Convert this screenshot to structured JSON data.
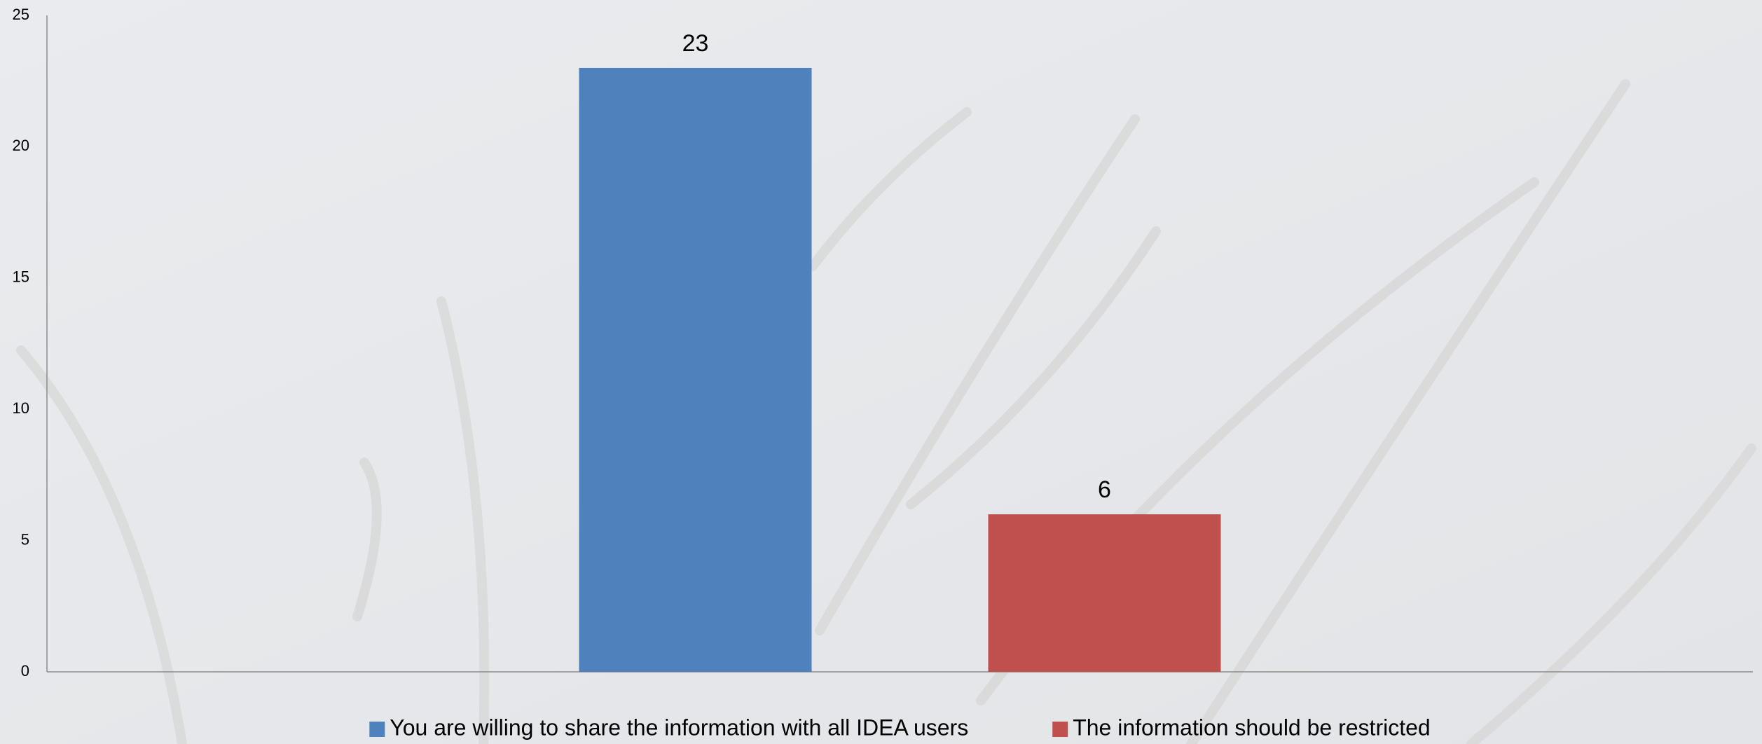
{
  "chart_data": {
    "type": "bar",
    "categories": [
      null
    ],
    "series": [
      {
        "name": "You are willing to share the information with all IDEA users",
        "color": "#4f81bd",
        "values": [
          23
        ]
      },
      {
        "name": "The information should be restricted",
        "color": "#c0504d",
        "values": [
          6
        ]
      }
    ],
    "ylim": [
      0,
      25
    ],
    "yticks": [
      0,
      5,
      10,
      15,
      20,
      25
    ],
    "grid": false,
    "legend": "bottom"
  }
}
